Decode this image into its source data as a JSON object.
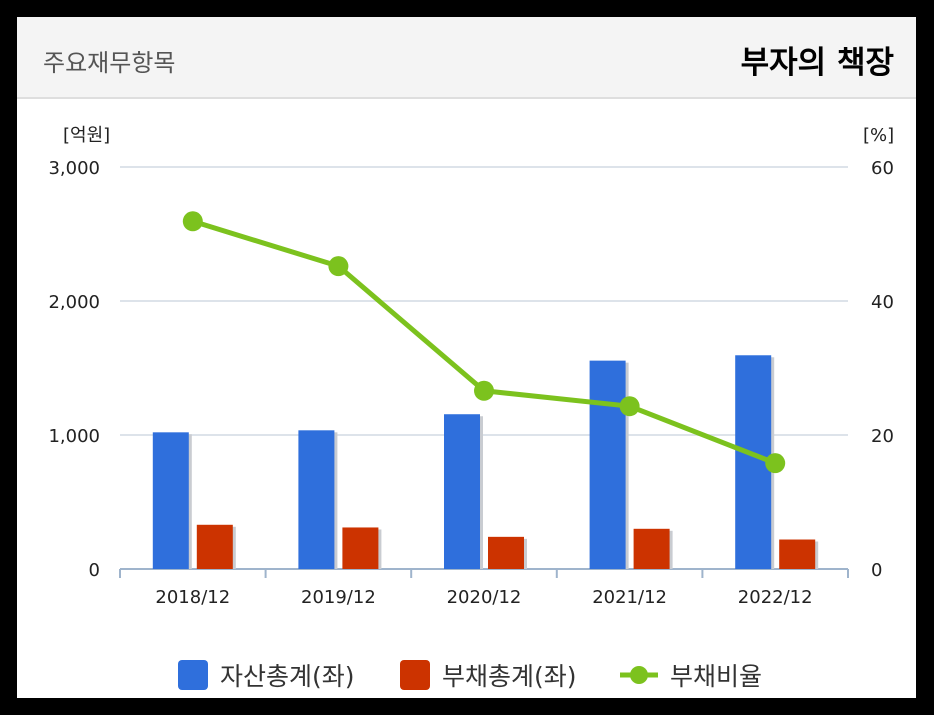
{
  "header": {
    "title": "주요재무항목",
    "brand": "부자의 책장"
  },
  "chart_data": {
    "type": "bar",
    "categories": [
      "2018/12",
      "2019/12",
      "2020/12",
      "2021/12",
      "2022/12"
    ],
    "series": [
      {
        "name": "자산총계(좌)",
        "kind": "bar",
        "axis": "left",
        "color": "#2f6fdc",
        "values": [
          1020,
          1035,
          1155,
          1555,
          1595
        ]
      },
      {
        "name": "부채총계(좌)",
        "kind": "bar",
        "axis": "left",
        "color": "#cc3300",
        "values": [
          330,
          310,
          240,
          300,
          220
        ]
      },
      {
        "name": "부채비율",
        "kind": "line",
        "axis": "right",
        "color": "#7cc21e",
        "values": [
          51.9,
          45.2,
          26.6,
          24.3,
          15.8
        ]
      }
    ],
    "left_axis": {
      "unit": "[억원]",
      "ylim": [
        0,
        3000
      ],
      "ticks": [
        "0",
        "1,000",
        "2,000",
        "3,000"
      ],
      "tick_values": [
        0,
        1000,
        2000,
        3000
      ]
    },
    "right_axis": {
      "unit": "[%]",
      "ylim": [
        0,
        60
      ],
      "ticks": [
        "0",
        "20",
        "40",
        "60"
      ],
      "tick_values": [
        0,
        20,
        40,
        60
      ]
    },
    "grid": true,
    "legend_position": "bottom"
  }
}
